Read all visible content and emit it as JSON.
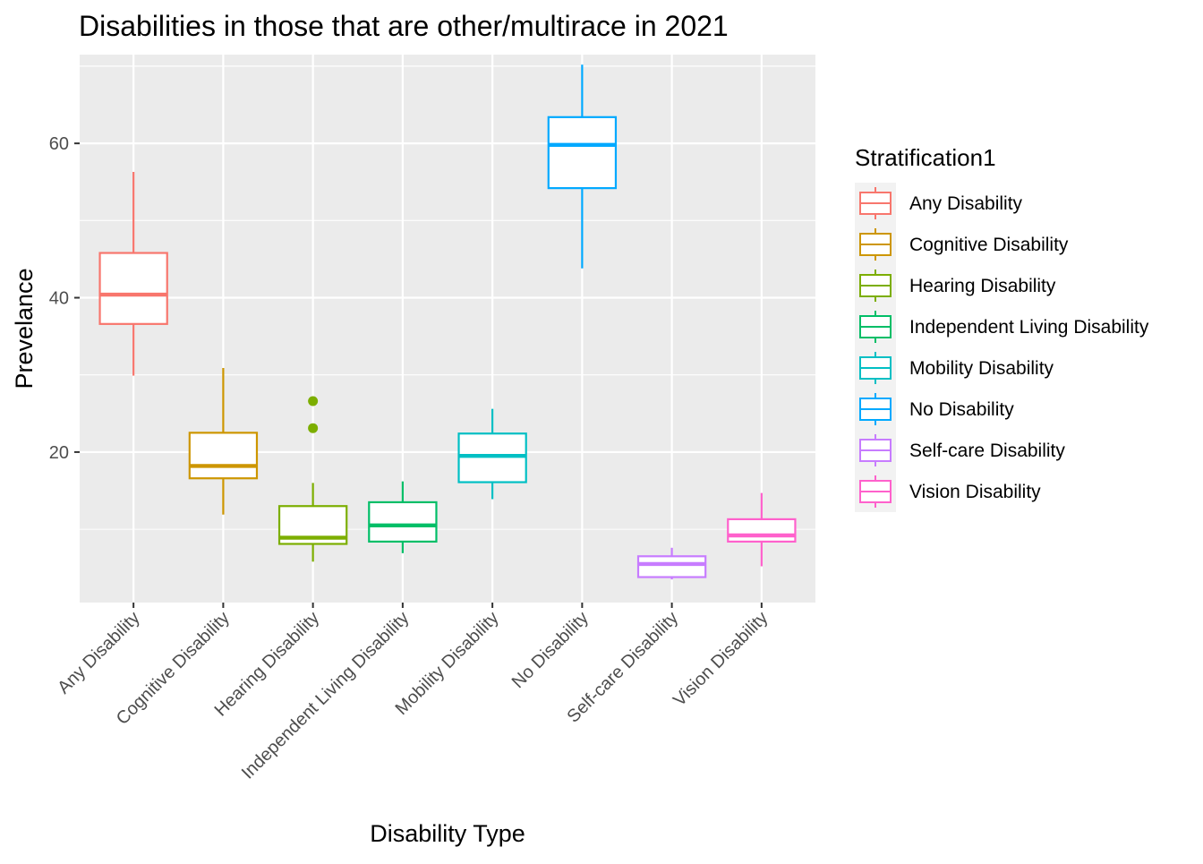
{
  "chart_data": {
    "type": "box",
    "title": "Disabilities in those that are other/multirace in 2021",
    "xlabel": "Disability Type",
    "ylabel": "Prevelance",
    "ylim": [
      0.5,
      71.5
    ],
    "yticks": [
      20,
      40,
      60
    ],
    "grid": true,
    "legend": {
      "title": "Stratification1",
      "placement": "right"
    },
    "categories": [
      "Any Disability",
      "Cognitive Disability",
      "Hearing Disability",
      "Independent Living Disability",
      "Mobility Disability",
      "No Disability",
      "Self-care Disability",
      "Vision Disability"
    ],
    "series": [
      {
        "name": "Any Disability",
        "color": "#F8766D",
        "min": 29.9,
        "q1": 36.6,
        "median": 40.4,
        "q3": 45.8,
        "max": 56.3,
        "outliers": []
      },
      {
        "name": "Cognitive Disability",
        "color": "#CD9600",
        "min": 11.9,
        "q1": 16.6,
        "median": 18.2,
        "q3": 22.5,
        "max": 30.9,
        "outliers": []
      },
      {
        "name": "Hearing Disability",
        "color": "#7CAE00",
        "min": 5.8,
        "q1": 8.1,
        "median": 8.9,
        "q3": 13.0,
        "max": 16.0,
        "outliers": [
          23.1,
          26.6
        ]
      },
      {
        "name": "Independent Living Disability",
        "color": "#00BE67",
        "min": 6.9,
        "q1": 8.4,
        "median": 10.5,
        "q3": 13.5,
        "max": 16.2,
        "outliers": []
      },
      {
        "name": "Mobility Disability",
        "color": "#00BFC4",
        "min": 13.9,
        "q1": 16.1,
        "median": 19.5,
        "q3": 22.4,
        "max": 25.6,
        "outliers": []
      },
      {
        "name": "No Disability",
        "color": "#00A9FF",
        "min": 43.8,
        "q1": 54.2,
        "median": 59.8,
        "q3": 63.4,
        "max": 70.2,
        "outliers": []
      },
      {
        "name": "Self-care Disability",
        "color": "#C77CFF",
        "min": 3.5,
        "q1": 3.8,
        "median": 5.5,
        "q3": 6.5,
        "max": 7.6,
        "outliers": []
      },
      {
        "name": "Vision Disability",
        "color": "#FF61CC",
        "min": 5.2,
        "q1": 8.4,
        "median": 9.2,
        "q3": 11.3,
        "max": 14.7,
        "outliers": []
      }
    ]
  }
}
